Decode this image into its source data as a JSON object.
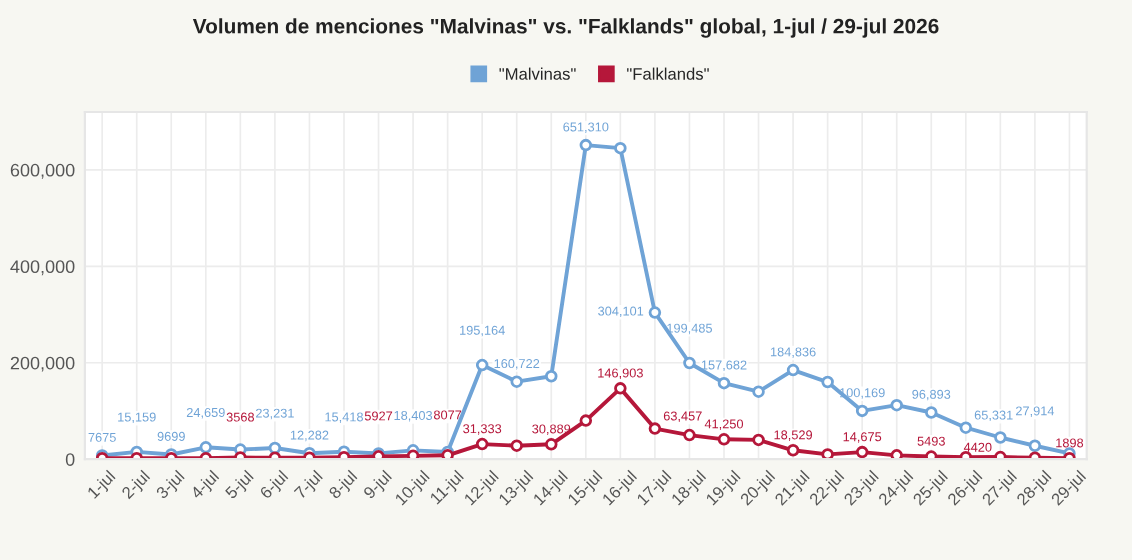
{
  "chart_data": {
    "type": "line",
    "title": "Volumen de menciones \"Malvinas\" vs. \"Falklands\" global, 1-jul / 29-jul 2026",
    "categories": [
      "1-jul",
      "2-jul",
      "3-jul",
      "4-jul",
      "5-jul",
      "6-jul",
      "7-jul",
      "8-jul",
      "9-jul",
      "10-jul",
      "11-jul",
      "12-jul",
      "13-jul",
      "14-jul",
      "15-jul",
      "16-jul",
      "17-jul",
      "18-jul",
      "19-jul",
      "20-jul",
      "21-jul",
      "22-jul",
      "23-jul",
      "24-jul",
      "25-jul",
      "26-jul",
      "27-jul",
      "28-jul",
      "29-jul"
    ],
    "series": [
      {
        "name": "\"Malvinas\"",
        "color": "#6fa3d6",
        "values": [
          7675,
          15159,
          9699,
          24659,
          20000,
          23231,
          12282,
          15418,
          12000,
          18403,
          15000,
          195164,
          160722,
          172000,
          651310,
          645000,
          304101,
          199485,
          157682,
          140000,
          184836,
          160000,
          100169,
          112000,
          96893,
          65331,
          45000,
          27914,
          12000
        ],
        "value_labels": [
          "7675",
          "15,159",
          "9699",
          "24,659",
          null,
          "23,231",
          "12,282",
          "15,418",
          null,
          "18,403",
          null,
          "195,164",
          "160,722",
          null,
          "651,310",
          null,
          "304,101",
          "199,485",
          "157,682",
          null,
          "184,836",
          null,
          "100,169",
          null,
          "96,893",
          "65,331",
          null,
          "27,914",
          null
        ]
      },
      {
        "name": "\"Falklands\"",
        "color": "#b5173a",
        "values": [
          2000,
          2000,
          2000,
          2000,
          3568,
          3000,
          3000,
          4000,
          5927,
          7000,
          8077,
          31333,
          28000,
          30889,
          80000,
          146903,
          63457,
          50000,
          41250,
          40000,
          18529,
          10000,
          14675,
          8000,
          5493,
          4000,
          4420,
          3000,
          1898
        ],
        "value_labels": [
          null,
          null,
          null,
          null,
          "3568",
          null,
          null,
          null,
          "5927",
          null,
          "8077",
          "31,333",
          null,
          "30,889",
          null,
          "146,903",
          "63,457",
          null,
          "41,250",
          null,
          "18,529",
          null,
          "14,675",
          null,
          "5493",
          null,
          "4420",
          null,
          "1898"
        ]
      }
    ],
    "ylim": [
      0,
      720000
    ],
    "yticks": [
      {
        "value": 0,
        "label": "0"
      },
      {
        "value": 200000,
        "label": "200,000"
      },
      {
        "value": 400000,
        "label": "400,000"
      },
      {
        "value": 600000,
        "label": "600,000"
      }
    ],
    "grid": true,
    "legend": "top",
    "marker": "circle",
    "line_style": "solid"
  }
}
